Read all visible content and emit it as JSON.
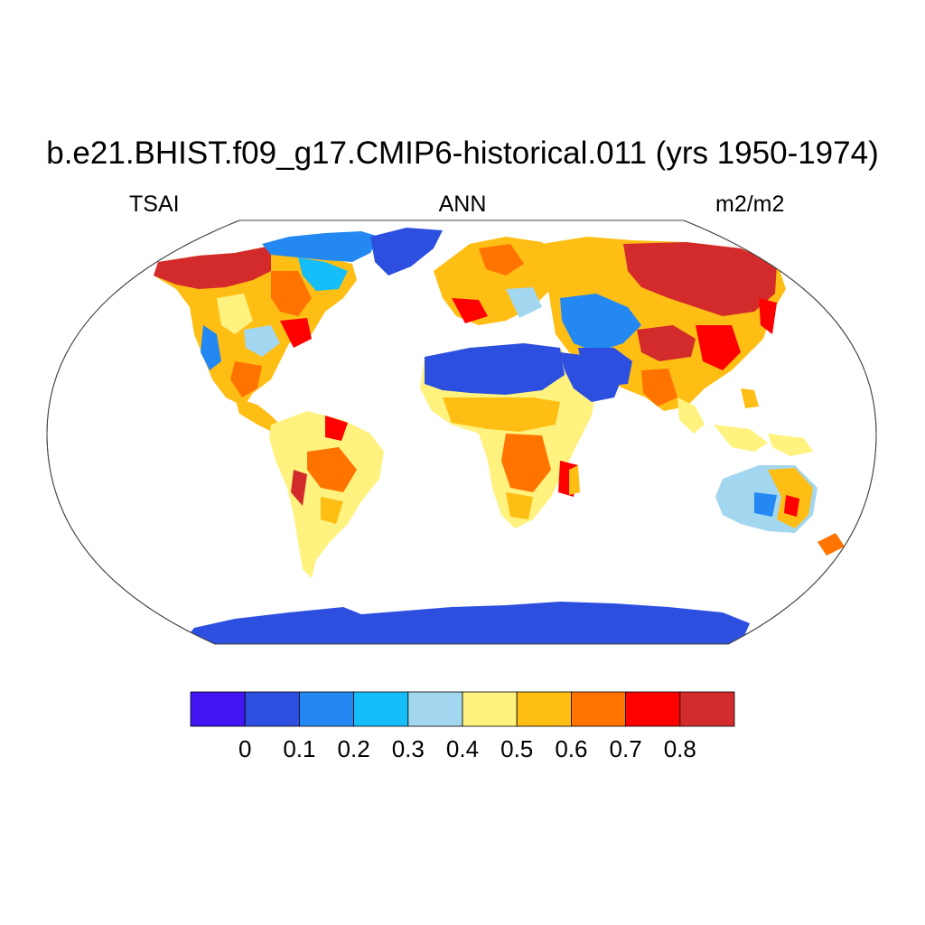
{
  "title": "b.e21.BHIST.f09_g17.CMIP6-historical.011 (yrs 1950-1974)",
  "left_string": "TSAI",
  "center_string": "ANN",
  "right_string": "m2/m2",
  "colorbar": {
    "colors": [
      "#4015F2",
      "#2D4FE0",
      "#2388F2",
      "#15BEF8",
      "#A3D6EF",
      "#FFF27F",
      "#FFBE14",
      "#FF7300",
      "#FE0000",
      "#D32B2B"
    ],
    "labels": [
      "0",
      "0.1",
      "0.2",
      "0.3",
      "0.4",
      "0.5",
      "0.6",
      "0.7",
      "0.8"
    ]
  },
  "map": {
    "projection": "Robinson",
    "ocean_color": "#ffffff",
    "variable": "TSAI"
  }
}
